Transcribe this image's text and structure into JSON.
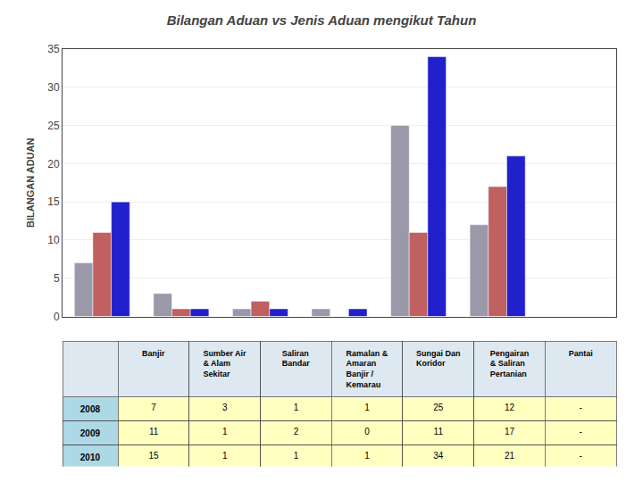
{
  "chart_data": {
    "type": "bar",
    "title": "Bilangan Aduan vs Jenis Aduan mengikut Tahun",
    "ylabel": "BILANGAN ADUAN",
    "categories": [
      "Banjir",
      "Sumber Air\n& Alam\nSekitar",
      "Saliran\nBandar",
      "Ramalan &\nAmaran\nBanjir /\nKemarau",
      "Sungai Dan\nKoridor",
      "Pengairan\n& Saliran\nPertanian",
      "Pantai"
    ],
    "series": [
      {
        "name": "2008",
        "color": "#9999aa",
        "values": [
          7,
          3,
          1,
          1,
          25,
          12,
          0
        ],
        "value_labels": [
          "7",
          "3",
          "1",
          "1",
          "25",
          "12",
          "-"
        ]
      },
      {
        "name": "2009",
        "color": "#c06060",
        "values": [
          11,
          1,
          2,
          0,
          11,
          17,
          0
        ],
        "value_labels": [
          "11",
          "1",
          "2",
          "0",
          "11",
          "17",
          "-"
        ]
      },
      {
        "name": "2010",
        "color": "#2020cc",
        "values": [
          15,
          1,
          1,
          1,
          34,
          21,
          0
        ],
        "value_labels": [
          "15",
          "1",
          "1",
          "1",
          "34",
          "21",
          "-"
        ]
      }
    ],
    "ylim": [
      0,
      35
    ],
    "yticks": [
      0,
      5,
      10,
      15,
      20,
      25,
      30,
      35
    ],
    "grid": true,
    "tick_labels": "y"
  }
}
